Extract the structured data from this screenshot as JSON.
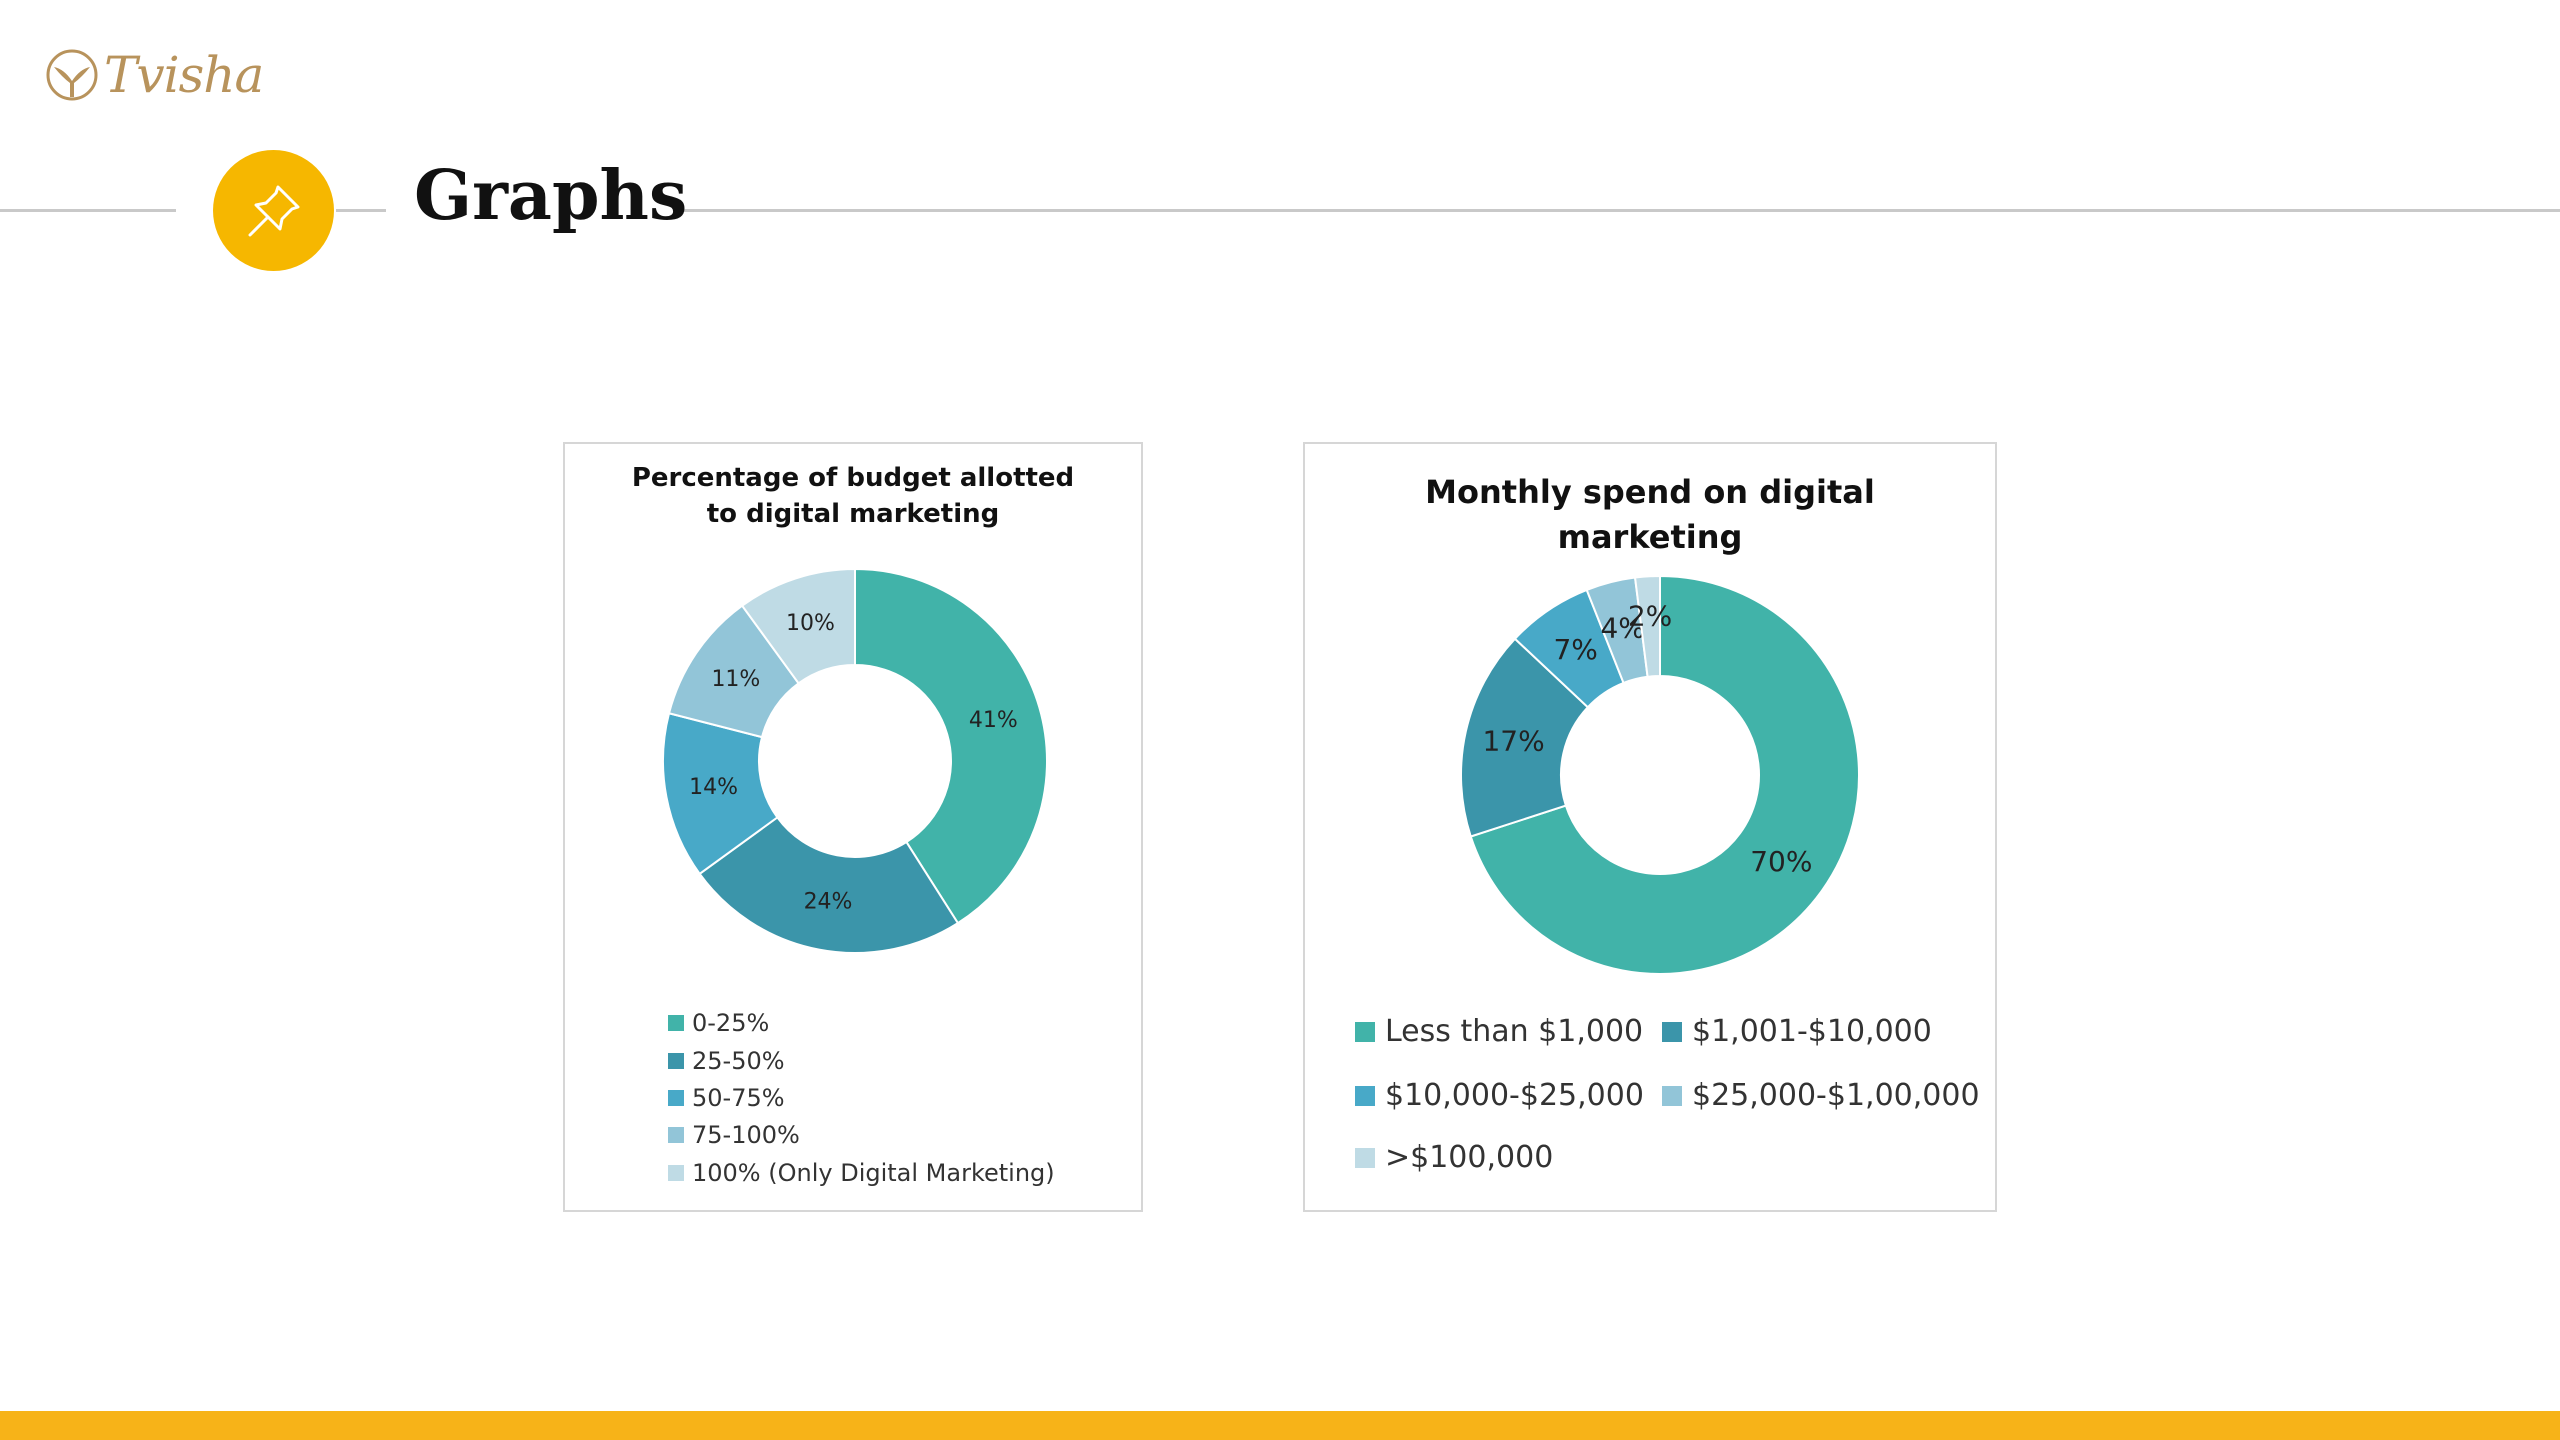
{
  "brand": {
    "name": "Tvisha",
    "color": "#b8935c"
  },
  "page": {
    "title": "Graphs",
    "accent": "#f6b700",
    "icon": "pushpin-icon"
  },
  "chart_data": [
    {
      "type": "pie",
      "donut": true,
      "title": "Percentage of budget allotted to digital marketing",
      "categories": [
        "0-25%",
        "25-50%",
        "50-75%",
        "75-100%",
        "100% (Only Digital Marketing)"
      ],
      "values": [
        41,
        24,
        14,
        11,
        10
      ],
      "value_labels": [
        "41%",
        "24%",
        "14%",
        "11%",
        "10%"
      ],
      "colors": [
        "#41b3a9",
        "#3b95aa",
        "#48a9c8",
        "#92c5d8",
        "#bfdbe5"
      ],
      "legend_position": "bottom"
    },
    {
      "type": "pie",
      "donut": true,
      "title": "Monthly spend on digital marketing",
      "categories": [
        "Less than $1,000",
        "$1,001-$10,000",
        "$10,000-$25,000",
        "$25,000-$1,00,000",
        ">$100,000"
      ],
      "values": [
        70,
        17,
        7,
        4,
        2
      ],
      "value_labels": [
        "70%",
        "17%",
        "7%",
        "4%",
        "2%"
      ],
      "colors": [
        "#41b3a9",
        "#3b95aa",
        "#48a9c8",
        "#92c5d8",
        "#bfdbe5"
      ],
      "legend_position": "bottom"
    }
  ]
}
